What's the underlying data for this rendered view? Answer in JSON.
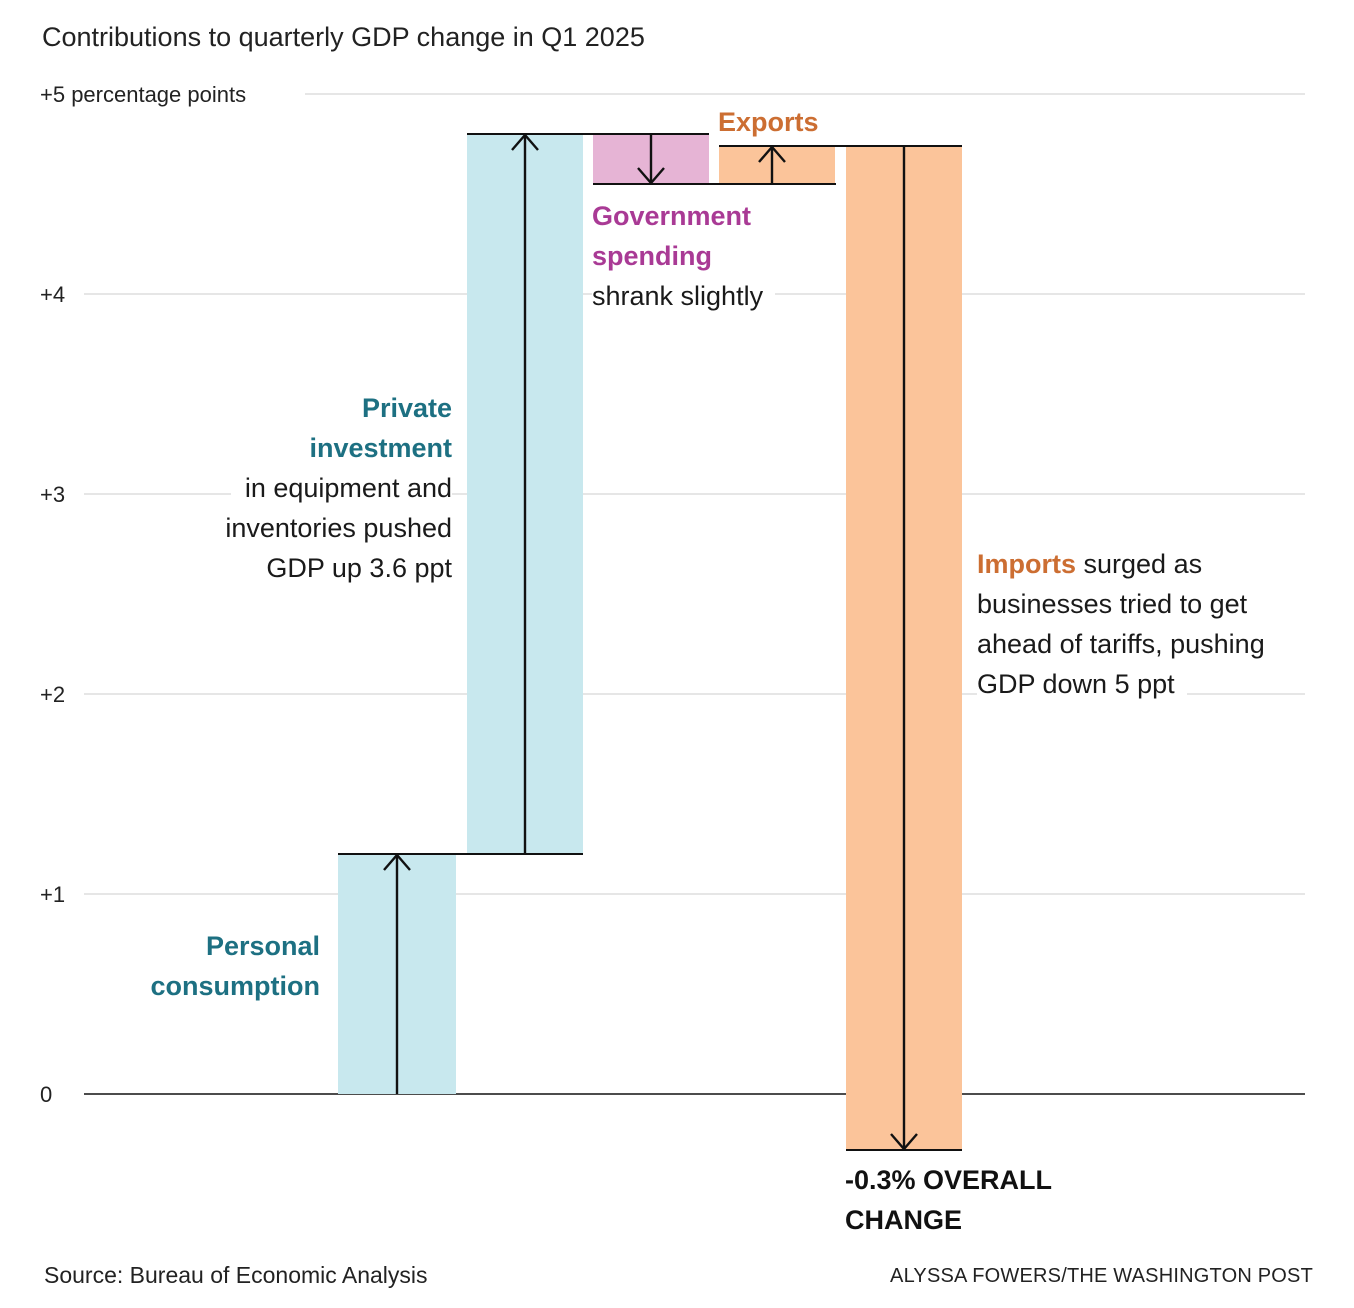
{
  "title": "Contributions to quarterly GDP change in Q1 2025",
  "source": "Source: Bureau of Economic Analysis",
  "credit": "ALYSSA FOWERS/THE WASHINGTON POST",
  "y_unit_label": "+5 percentage points",
  "colors": {
    "consumption": "#c8e8ee",
    "investment": "#c8e8ee",
    "government": "#e6b4d5",
    "exports": "#fbc49a",
    "imports": "#fbc49a",
    "grid": "#cccccc",
    "axis": "#111111"
  },
  "annotations": {
    "consumption": {
      "hl1": "Personal",
      "hl2": "consumption"
    },
    "investment": {
      "hl1": "Private",
      "hl2": "investment",
      "l1": "in equipment and",
      "l2": "inventories pushed",
      "l3": "GDP up 3.6 ppt"
    },
    "government": {
      "hl1": "Government",
      "hl2": "spending",
      "l1": "shrank slightly"
    },
    "exports": {
      "hl1": "Exports"
    },
    "imports": {
      "hl1": "Imports",
      "rest": " surged as",
      "l2": "businesses tried to get",
      "l3": "ahead of tariffs, pushing",
      "l4": "GDP down 5 ppt"
    },
    "total": {
      "l1": "-0.3% OVERALL",
      "l2": "CHANGE"
    }
  },
  "chart_data": {
    "type": "waterfall",
    "title": "Contributions to quarterly GDP change in Q1 2025",
    "ylabel": "percentage points",
    "ylim": [
      -0.3,
      5
    ],
    "yticks": [
      0,
      1,
      2,
      3,
      4,
      5
    ],
    "ytick_labels": [
      "0",
      "+1",
      "+2",
      "+3",
      "+4",
      "+5 percentage points"
    ],
    "grid": true,
    "series": [
      {
        "category": "Personal consumption",
        "start": 0,
        "end": 1.2,
        "change": 1.2
      },
      {
        "category": "Private investment",
        "start": 1.2,
        "end": 4.8,
        "change": 3.6
      },
      {
        "category": "Government spending",
        "start": 4.8,
        "end": 4.55,
        "change": -0.25
      },
      {
        "category": "Exports",
        "start": 4.55,
        "end": 4.74,
        "change": 0.19
      },
      {
        "category": "Imports",
        "start": 4.74,
        "end": -0.28,
        "change": -5.02
      }
    ],
    "total": -0.3
  }
}
